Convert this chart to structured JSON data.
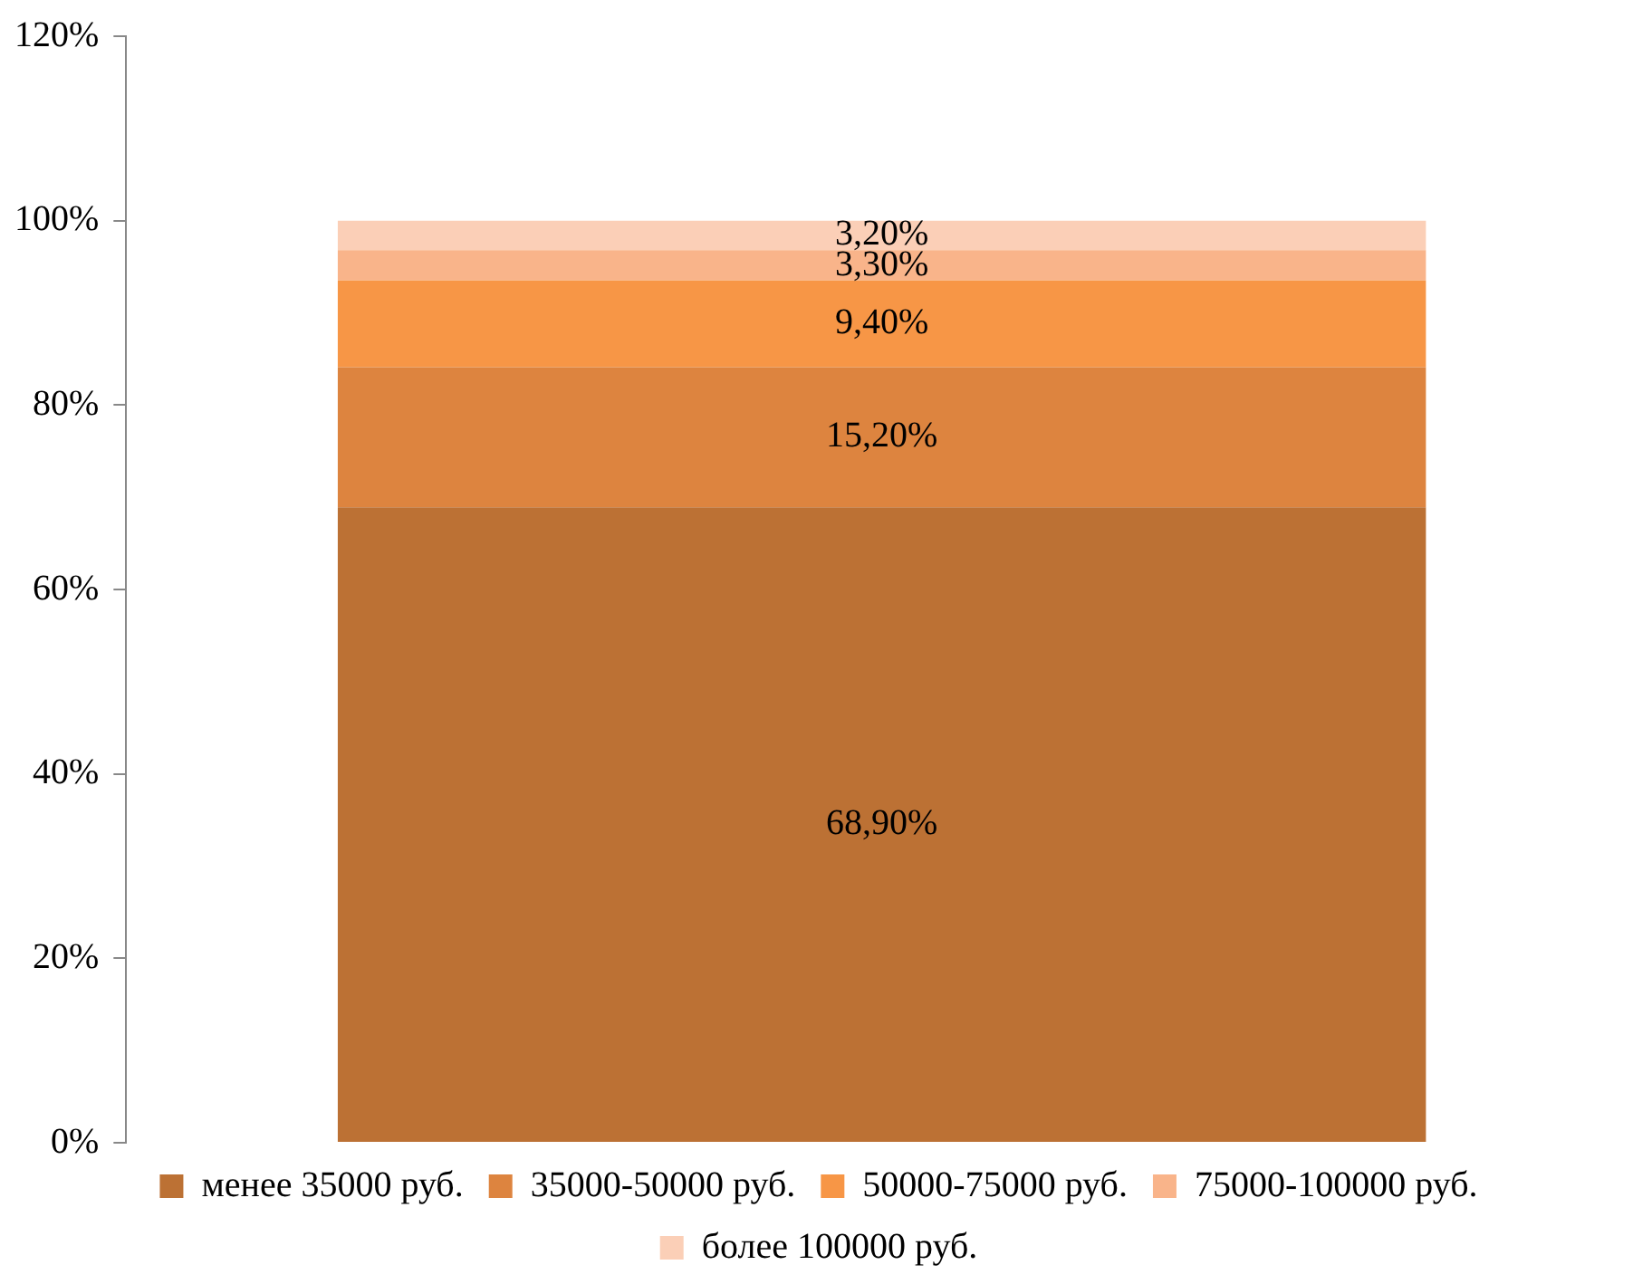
{
  "chart_data": {
    "type": "bar",
    "stacked": true,
    "categories": [
      null
    ],
    "ylim": [
      0,
      120
    ],
    "yticks": [
      {
        "value": 0,
        "label": "0%"
      },
      {
        "value": 20,
        "label": "20%"
      },
      {
        "value": 40,
        "label": "40%"
      },
      {
        "value": 60,
        "label": "60%"
      },
      {
        "value": 80,
        "label": "80%"
      },
      {
        "value": 100,
        "label": "100%"
      },
      {
        "value": 120,
        "label": "120%"
      }
    ],
    "grid": false,
    "legend": "bottom",
    "series": [
      {
        "name": "менее 35000 руб.",
        "color": "#bc7134",
        "values": [
          68.9
        ],
        "value_labels": [
          "68,90%"
        ]
      },
      {
        "name": "35000-50000 руб.",
        "color": "#dd843f",
        "values": [
          15.2
        ],
        "value_labels": [
          "15,20%"
        ]
      },
      {
        "name": "50000-75000 руб.",
        "color": "#f79646",
        "values": [
          9.4
        ],
        "value_labels": [
          "9,40%"
        ]
      },
      {
        "name": "75000-100000 руб.",
        "color": "#f9b48a",
        "values": [
          3.3
        ],
        "value_labels": [
          "3,30%"
        ]
      },
      {
        "name": "более 100000 руб.",
        "color": "#fbcfb7",
        "values": [
          3.2
        ],
        "value_labels": [
          "3,20%"
        ]
      }
    ]
  }
}
